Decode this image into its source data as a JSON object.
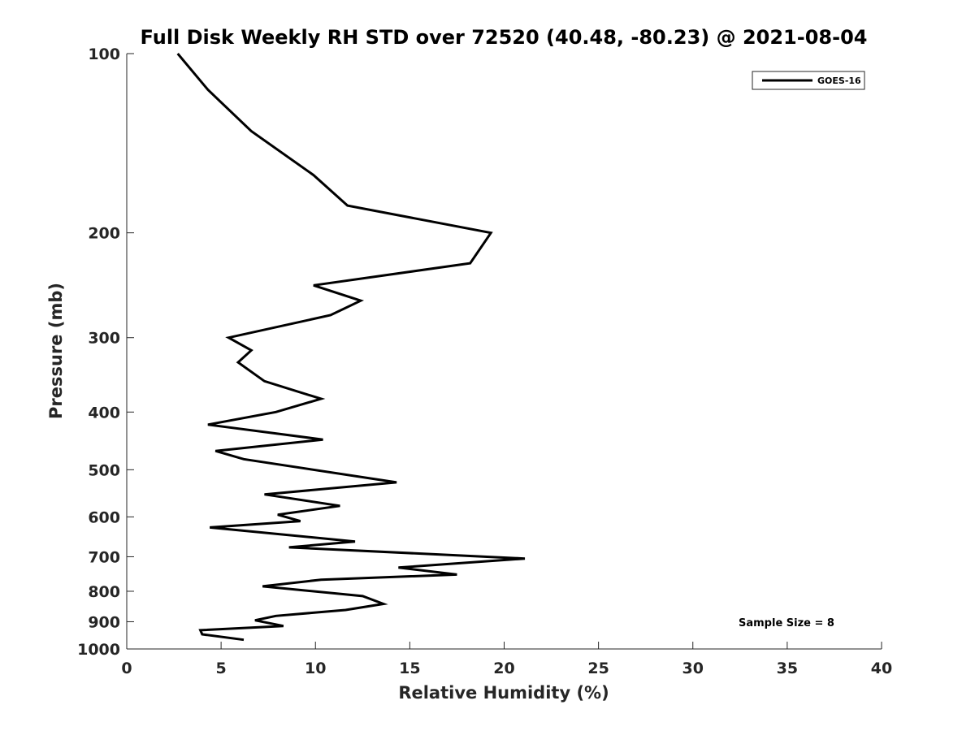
{
  "chart_data": {
    "type": "line",
    "title": "Full Disk Weekly RH STD over 72520 (40.48, -80.23) @ 2021-08-04",
    "xlabel": "Relative Humidity (%)",
    "ylabel": "Pressure (mb)",
    "xlim": [
      0,
      40
    ],
    "ylim": [
      100,
      1000
    ],
    "yscale": "log",
    "y_reversed": true,
    "grid": false,
    "legend_position": "top-right",
    "xticks": [
      0,
      5,
      10,
      15,
      20,
      25,
      30,
      35,
      40
    ],
    "yticks": [
      100,
      200,
      300,
      400,
      500,
      600,
      700,
      800,
      900,
      1000
    ],
    "annotation": "Sample Size = 8",
    "series": [
      {
        "name": "GOES-16",
        "color": "#000000",
        "x": [
          2.7,
          4.3,
          6.6,
          9.9,
          11.7,
          19.3,
          18.2,
          9.9,
          12.4,
          10.8,
          5.4,
          6.6,
          5.9,
          7.3,
          10.3,
          7.9,
          4.3,
          10.4,
          4.7,
          6.2,
          14.3,
          7.3,
          11.3,
          8.0,
          9.2,
          4.4,
          12.1,
          8.6,
          21.1,
          14.4,
          17.5,
          10.3,
          7.2,
          12.5,
          13.6,
          11.6,
          7.9,
          6.8,
          8.3,
          3.9,
          4.0,
          6.2
        ],
        "y": [
          100,
          115,
          135,
          160,
          180,
          200,
          225,
          245,
          260,
          275,
          300,
          315,
          330,
          355,
          380,
          400,
          420,
          445,
          465,
          480,
          525,
          550,
          575,
          595,
          610,
          625,
          660,
          675,
          705,
          730,
          750,
          765,
          785,
          815,
          840,
          860,
          880,
          895,
          915,
          930,
          945,
          965
        ]
      }
    ]
  }
}
